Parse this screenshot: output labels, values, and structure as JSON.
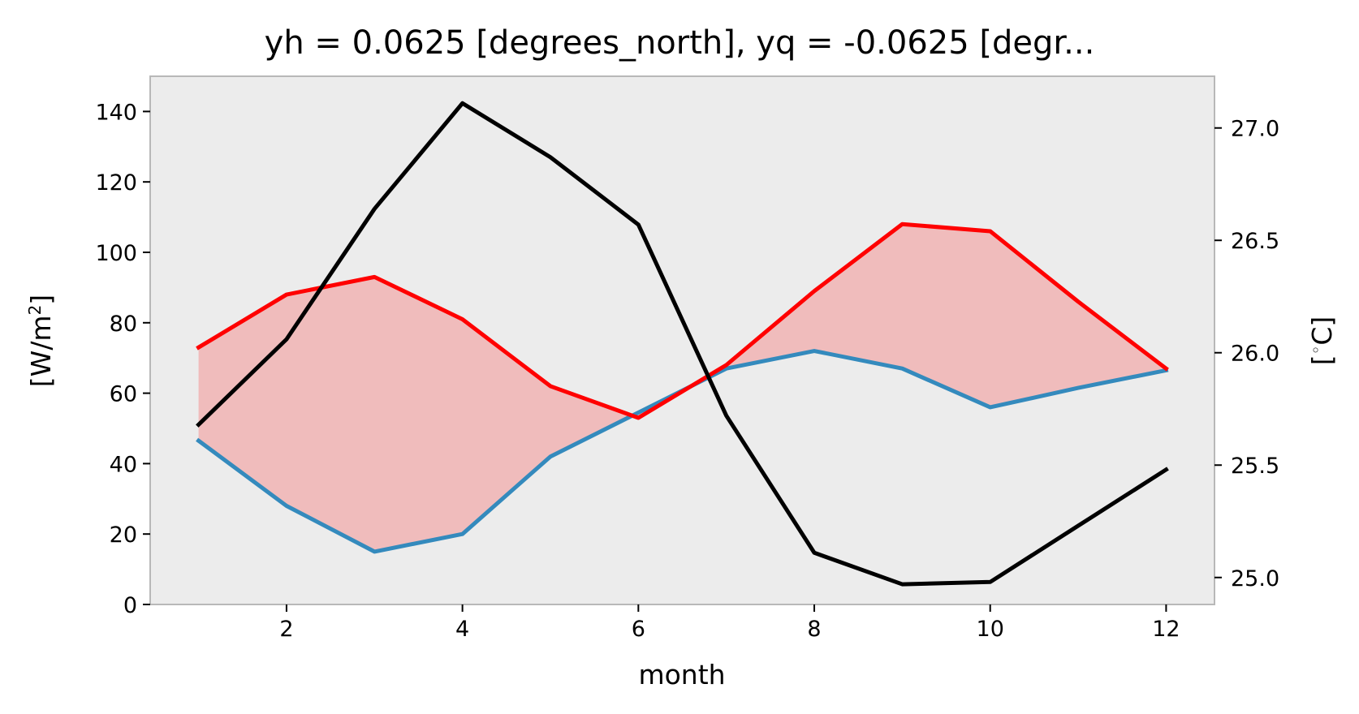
{
  "chart_data": {
    "type": "line",
    "title": "yh = 0.0625 [degrees_north], yq = -0.0625 [degr...",
    "xlabel": "month",
    "ylabel_left": {
      "base": "[W/m",
      "sup": "2",
      "close": "]"
    },
    "ylabel_right": {
      "open": "[",
      "sup": "◦",
      "rest": "C]"
    },
    "xlim": [
      0.45,
      12.55
    ],
    "ylim_left": [
      0,
      150
    ],
    "ylim_right": [
      24.88,
      27.23
    ],
    "xticks": [
      2,
      4,
      6,
      8,
      10,
      12
    ],
    "yticks_left": [
      0,
      20,
      40,
      60,
      80,
      100,
      120,
      140
    ],
    "yticks_right": [
      25.0,
      25.5,
      26.0,
      26.5,
      27.0
    ],
    "yticks_right_labels": [
      "25.0",
      "25.5",
      "26.0",
      "26.5",
      "27.0"
    ],
    "x": [
      1,
      2,
      3,
      4,
      5,
      6,
      7,
      8,
      9,
      10,
      11,
      12
    ],
    "series": [
      {
        "axis": "left",
        "color": "#ff0000",
        "values": [
          73,
          88,
          93,
          81,
          62,
          53,
          68,
          89,
          108,
          106,
          86,
          67
        ]
      },
      {
        "axis": "left",
        "color": "#348abd",
        "values": [
          46.5,
          28,
          15,
          20,
          42,
          54.5,
          67,
          72,
          67,
          56,
          61.5,
          66.5
        ]
      },
      {
        "axis": "right",
        "color": "#000000",
        "values": [
          25.68,
          26.06,
          26.64,
          27.11,
          26.87,
          26.57,
          25.72,
          25.11,
          24.97,
          24.98,
          25.23,
          25.48
        ]
      }
    ],
    "fill_between": {
      "color": "#f0bcbc"
    },
    "background": "#ececec",
    "grid": false,
    "legend": false
  }
}
